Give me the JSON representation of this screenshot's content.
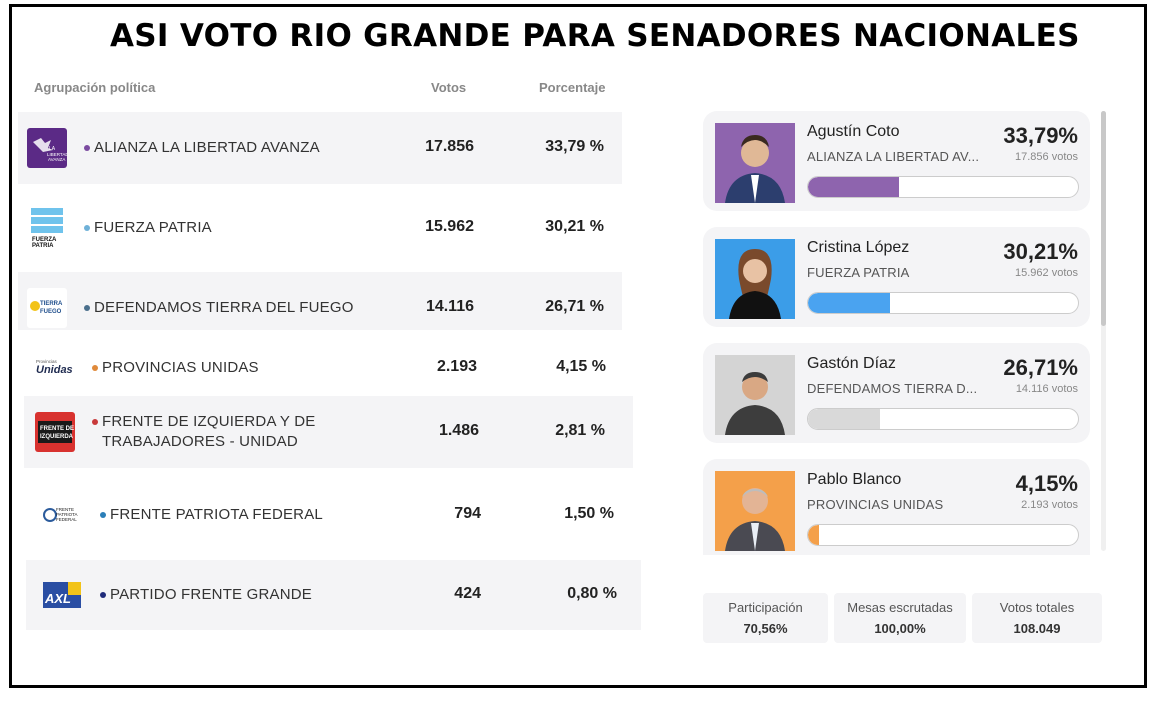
{
  "title": "ASI VOTO RIO GRANDE PARA SENADORES NACIONALES",
  "table": {
    "headers": {
      "party": "Agrupación política",
      "votes": "Votos",
      "percent": "Porcentaje"
    },
    "rows": [
      {
        "name": "ALIANZA LA LIBERTAD AVANZA",
        "votes": "17.856",
        "percent": "33,79 %",
        "dot_color": "#7b4ba0",
        "logo_text": "LA LIBERTAD AVANZA"
      },
      {
        "name": "FUERZA PATRIA",
        "votes": "15.962",
        "percent": "30,21 %",
        "dot_color": "#6fb1d8",
        "logo_text": "FUERZA PATRIA"
      },
      {
        "name": "DEFENDAMOS TIERRA DEL FUEGO",
        "votes": "14.116",
        "percent": "26,71 %",
        "dot_color": "#4a6f8c",
        "logo_text": "TIERRA FUEGO"
      },
      {
        "name": "PROVINCIAS UNIDAS",
        "votes": "2.193",
        "percent": "4,15 %",
        "dot_color": "#e08a3a",
        "logo_text": "Unidas"
      },
      {
        "name": "FRENTE DE IZQUIERDA Y DE",
        "name2": "TRABAJADORES - UNIDAD",
        "votes": "1.486",
        "percent": "2,81 %",
        "dot_color": "#c8393a",
        "logo_text": "FRENTE DE IZQUIERDA"
      },
      {
        "name": "FRENTE PATRIOTA FEDERAL",
        "votes": "794",
        "percent": "1,50 %",
        "dot_color": "#2b7fb8",
        "logo_text": "FRENTE PATRIOTA FEDERAL"
      },
      {
        "name": "PARTIDO FRENTE GRANDE",
        "votes": "424",
        "percent": "0,80 %",
        "dot_color": "#1f2b7a",
        "logo_text": "AXL"
      }
    ]
  },
  "candidates": [
    {
      "name": "Agustín Coto",
      "party": "ALIANZA LA LIBERTAD AV...",
      "percent": "33,79%",
      "votes": "17.856 votos",
      "share": 33.79,
      "bar_color": "#8e64ae",
      "photo_bg": "#8e64ae"
    },
    {
      "name": "Cristina López",
      "party": "FUERZA PATRIA",
      "percent": "30,21%",
      "votes": "15.962 votos",
      "share": 30.21,
      "bar_color": "#4aa3f0",
      "photo_bg": "#3b9de8"
    },
    {
      "name": "Gastón Díaz",
      "party": "DEFENDAMOS TIERRA D...",
      "percent": "26,71%",
      "votes": "14.116 votos",
      "share": 26.71,
      "bar_color": "#d9d9d9",
      "photo_bg": "#c9c9c9"
    },
    {
      "name": "Pablo Blanco",
      "party": "PROVINCIAS UNIDAS",
      "percent": "4,15%",
      "votes": "2.193 votos",
      "share": 4.15,
      "bar_color": "#f4a04a",
      "photo_bg": "#f4a04a"
    }
  ],
  "stats": [
    {
      "label": "Participación",
      "value": "70,56%"
    },
    {
      "label": "Mesas escrutadas",
      "value": "100,00%"
    },
    {
      "label": "Votos totales",
      "value": "108.049"
    }
  ]
}
